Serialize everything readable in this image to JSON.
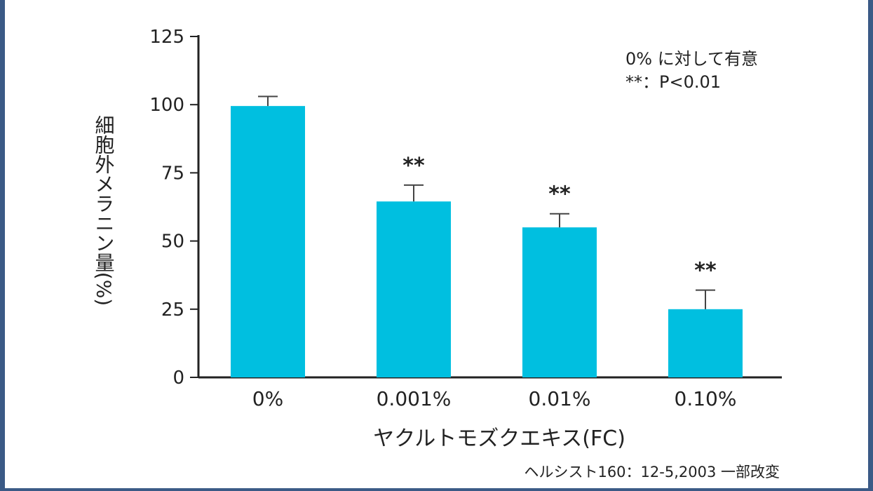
{
  "chart_data": {
    "type": "bar",
    "categories": [
      "0%",
      "0.001%",
      "0.01%",
      "0.10%"
    ],
    "values": [
      99.5,
      64.5,
      55,
      25
    ],
    "error_upper": [
      103,
      70.5,
      60,
      32
    ],
    "significance": [
      "",
      "**",
      "**",
      "**"
    ],
    "ylabel": "細胞外メラニン量(%)",
    "xlabel": "ヤクルトモズクエキス(FC)",
    "ylim": [
      0,
      125
    ],
    "yticks": [
      "0",
      "25",
      "50",
      "75",
      "100",
      "125"
    ],
    "legend_note": [
      "0% に対して有意",
      "**：P<0.01"
    ],
    "source": "ヘルシスト160：12-5,2003 一部改変",
    "bar_color": "#00bfe0",
    "grid": false
  }
}
